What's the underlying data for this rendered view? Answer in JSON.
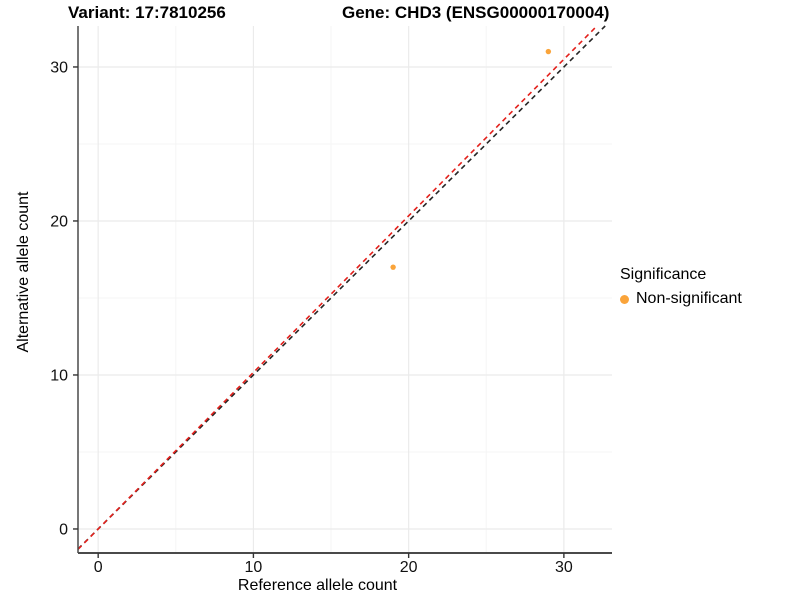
{
  "header": {
    "variant_title": "Variant: 17:7810256",
    "gene_title": "Gene: CHD3 (ENSG00000170004)"
  },
  "legend": {
    "title": "Significance",
    "items": [
      {
        "label": "Non-significant",
        "color": "#FAA43A"
      }
    ]
  },
  "chart_data": {
    "type": "scatter",
    "title": "Variant: 17:7810256 — Gene: CHD3 (ENSG00000170004)",
    "xlabel": "Reference allele count",
    "ylabel": "Alternative allele count",
    "xlim": [
      -1.3,
      33.1
    ],
    "ylim": [
      -1.56,
      32.66
    ],
    "x_ticks": [
      0,
      10,
      20,
      30
    ],
    "y_ticks": [
      0,
      10,
      20,
      30
    ],
    "x_minor_ticks": [
      5,
      15,
      25
    ],
    "y_minor_ticks": [
      5,
      15,
      25
    ],
    "grid": true,
    "legend_position": "right",
    "series": [
      {
        "name": "Non-significant",
        "color": "#FAA43A",
        "points": [
          {
            "x": 29,
            "y": 31
          },
          {
            "x": 19,
            "y": 17
          }
        ]
      }
    ],
    "lines": [
      {
        "name": "identity-line",
        "slope": 1.0,
        "intercept": 0,
        "color": "#262626",
        "style": "dashed"
      },
      {
        "name": "fitted-line",
        "slope": 1.0166,
        "intercept": 0,
        "color": "#E3201B",
        "style": "dashed"
      }
    ],
    "style": {
      "major_grid_color": "#EBEBEB",
      "minor_grid_color": "#F5F5F5",
      "axis_line_color": "#4A4A4A",
      "tick_color": "#333333",
      "tick_label_color": "#111111"
    }
  }
}
